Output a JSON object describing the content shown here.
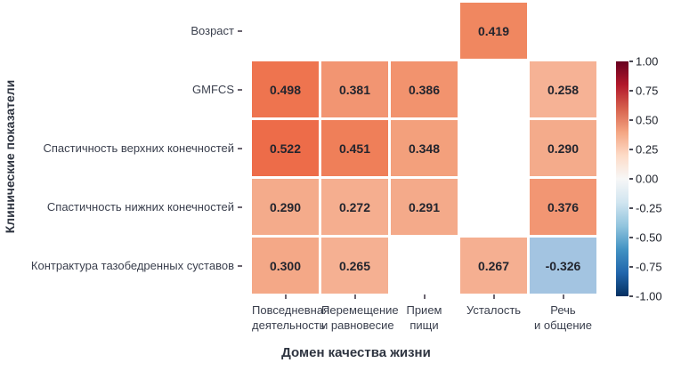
{
  "chart_data": {
    "type": "heatmap",
    "title": "",
    "xlabel": "Домен качества жизни",
    "ylabel": "Клинические показатели",
    "rows": [
      "Возраст",
      "GMFCS",
      "Спастичность верхних конечностей",
      "Спастичность нижних конечностей",
      "Контрактура тазобедренных суставов"
    ],
    "columns": [
      [
        "Повседневная",
        "деятельность"
      ],
      [
        "Перемещение",
        "и равновесие"
      ],
      [
        "Прием",
        "пищи"
      ],
      [
        "Усталость"
      ],
      [
        "Речь",
        "и общение"
      ]
    ],
    "values": [
      [
        null,
        null,
        null,
        0.419,
        null
      ],
      [
        0.498,
        0.381,
        0.386,
        null,
        0.258
      ],
      [
        0.522,
        0.451,
        0.348,
        null,
        0.29
      ],
      [
        0.29,
        0.272,
        0.291,
        null,
        0.376
      ],
      [
        0.3,
        0.265,
        null,
        0.267,
        -0.326
      ]
    ],
    "cell_colors": [
      [
        null,
        null,
        null,
        "#f08760",
        null
      ],
      [
        "#ee744f",
        "#f29572",
        "#f2936e",
        null,
        "#f6b295"
      ],
      [
        "#ed6c49",
        "#ef7f59",
        "#f3a07c",
        null,
        "#f4ab8b"
      ],
      [
        "#f4ab8b",
        "#f5ae8f",
        "#f4aa8a",
        null,
        "#f29673"
      ],
      [
        "#f4a887",
        "#f5b092",
        null,
        "#f5af91",
        "#a3c4e1"
      ]
    ],
    "value_text_color": "#23252e",
    "value_decimals": 3,
    "colorbar": {
      "min": -1.0,
      "max": 1.0,
      "tick_labels": [
        "1.00",
        "0.75",
        "0.50",
        "0.25",
        "0.00",
        "-0.25",
        "-0.50",
        "-0.75",
        "-1.00"
      ],
      "colormap": "RdBu_r",
      "gradient_stops": [
        "#67001f",
        "#b2182b",
        "#d6604d",
        "#f4a582",
        "#fddbc7",
        "#f7f7f7",
        "#d1e5f0",
        "#92c5de",
        "#4393c3",
        "#2166ac",
        "#053061"
      ]
    },
    "grid": false,
    "legend_position": "right-colorbar"
  }
}
